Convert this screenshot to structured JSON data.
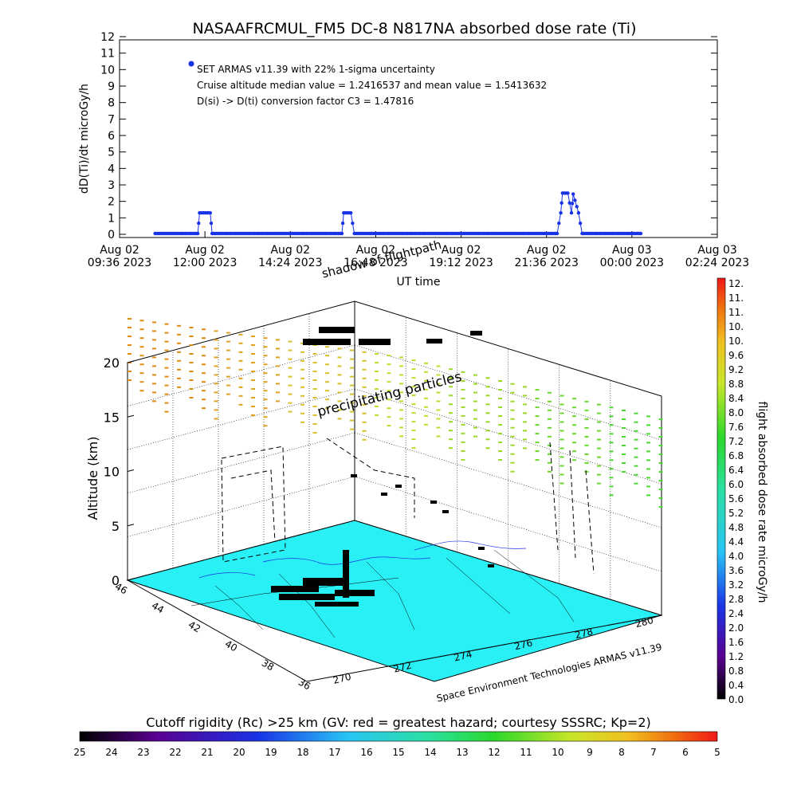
{
  "chart_data": [
    {
      "type": "scatter",
      "title": "NASAAFRCMUL_FM5 DC-8   N817NA absorbed dose rate (Ti)",
      "ylabel": "dD(Ti)/dt microGy/h",
      "xlabel": "UT time",
      "ylim": [
        0,
        12
      ],
      "y_ticks": [
        "0",
        "1",
        "2",
        "3",
        "4",
        "5",
        "6",
        "7",
        "8",
        "9",
        "10",
        "11",
        "12"
      ],
      "x_ticks": [
        {
          "d": "Aug 02",
          "t": "09:36 2023"
        },
        {
          "d": "Aug 02",
          "t": "12:00 2023"
        },
        {
          "d": "Aug 02",
          "t": "14:24 2023"
        },
        {
          "d": "Aug 02",
          "t": "16:48 2023"
        },
        {
          "d": "Aug 02",
          "t": "19:12 2023"
        },
        {
          "d": "Aug 02",
          "t": "21:36 2023"
        },
        {
          "d": "Aug 03",
          "t": "00:00 2023"
        },
        {
          "d": "Aug 03",
          "t": "02:24 2023"
        }
      ],
      "legend_marker_color": "#1a33e6",
      "legend": [
        "SET ARMAS v11.39 with 22% 1-sigma uncertainty",
        "Cruise altitude median value = 1.2416537 and mean value = 1.5413632",
        "D(si) -> D(ti) conversion factor C3 = 1.47816"
      ],
      "series": [
        {
          "color": "#1a33e6",
          "points_hours": [
            [
              10.6,
              0.05
            ],
            [
              11.2,
              0.05
            ],
            [
              11.8,
              0.05
            ],
            [
              11.85,
              1.3
            ],
            [
              12.0,
              1.3
            ],
            [
              12.15,
              1.3
            ],
            [
              12.2,
              0.05
            ],
            [
              13.0,
              0.05
            ],
            [
              14.0,
              0.05
            ],
            [
              15.0,
              0.05
            ],
            [
              15.85,
              0.05
            ],
            [
              15.9,
              1.3
            ],
            [
              16.1,
              1.3
            ],
            [
              16.2,
              0.05
            ],
            [
              17.0,
              0.05
            ],
            [
              18.0,
              0.05
            ],
            [
              19.0,
              0.05
            ],
            [
              20.0,
              0.05
            ],
            [
              21.0,
              0.05
            ],
            [
              21.9,
              0.05
            ],
            [
              22.0,
              1.3
            ],
            [
              22.05,
              2.5
            ],
            [
              22.2,
              2.5
            ],
            [
              22.3,
              1.3
            ],
            [
              22.35,
              2.45
            ],
            [
              22.5,
              1.3
            ],
            [
              22.6,
              0.05
            ],
            [
              23.0,
              0.05
            ],
            [
              23.5,
              0.05
            ],
            [
              24.0,
              0.05
            ],
            [
              24.3,
              0.05
            ]
          ]
        }
      ]
    },
    {
      "type": "scatter",
      "zlabel": "Altitude (km)",
      "z_ticks": [
        "0",
        "5",
        "10",
        "15",
        "20"
      ],
      "lat_ticks": [
        "46",
        "44",
        "42",
        "40",
        "38",
        "36"
      ],
      "lon_ticks": [
        "270",
        "272",
        "274",
        "276",
        "278",
        "280"
      ],
      "annotations": [
        "precipitating particles",
        "shadow of flightpath"
      ],
      "footer": "Space Environment Technologies ARMAS v11.39",
      "colorbar": {
        "label": "flight absorbed dose rate microGy/h",
        "ticks": [
          "12.",
          "11.",
          "11.",
          "10.",
          "10.",
          "9.6",
          "9.2",
          "8.8",
          "8.4",
          "8.0",
          "7.6",
          "7.2",
          "6.8",
          "6.4",
          "6.0",
          "5.6",
          "5.2",
          "4.8",
          "4.4",
          "4.0",
          "3.6",
          "3.2",
          "2.8",
          "2.4",
          "2.0",
          "1.6",
          "1.2",
          "0.8",
          "0.4",
          "0.0"
        ]
      },
      "rigidity_bar": {
        "label": "Cutoff rigidity (Rc) >25 km (GV: red = greatest hazard; courtesy SSSRC; Kp=2)",
        "ticks": [
          "25",
          "24",
          "23",
          "22",
          "21",
          "20",
          "19",
          "18",
          "17",
          "16",
          "15",
          "14",
          "13",
          "12",
          "11",
          "10",
          "9",
          "8",
          "7",
          "6",
          "5"
        ]
      },
      "ground_color": "#29f0f5"
    }
  ]
}
